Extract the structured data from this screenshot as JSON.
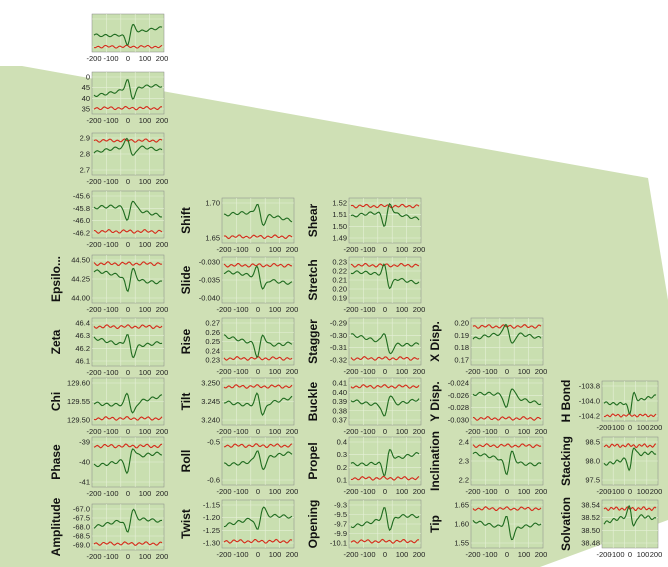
{
  "colors": {
    "green_overlay": "#cfe0b5",
    "panel_bg": "#c9dfb0",
    "panel_grid": "#e6f0d8",
    "simulation_line": "#1f6b1f",
    "reference_line": "#d62a1a"
  },
  "x_ticks": [
    "-200",
    "-100",
    "0",
    "100",
    "200"
  ],
  "chart_data": [
    {
      "id": "c0r0",
      "type": "line",
      "ylabel": "",
      "yticks": [
        "",
        ""
      ],
      "ylim": [
        0,
        1
      ]
    },
    {
      "id": "c0r1",
      "type": "line",
      "ylabel": "",
      "yticks": [
        "0",
        "45",
        "40",
        "35"
      ],
      "ylim": [
        0,
        1
      ]
    },
    {
      "id": "c0r2",
      "type": "line",
      "ylabel": "",
      "yticks": [
        "2.9",
        "2.8",
        "2.7"
      ],
      "ylim": [
        2.65,
        2.95
      ]
    },
    {
      "id": "c0r3",
      "type": "line",
      "ylabel": "",
      "yticks": [
        "-45.6",
        "-45.8",
        "-46.0",
        "-46.2"
      ],
      "ylim": [
        -46.3,
        -45.5
      ]
    },
    {
      "id": "c0r4",
      "type": "line",
      "ylabel": "Epsilo...",
      "yticks": [
        "44.50",
        "44.25",
        "44.00"
      ],
      "ylim": [
        43.9,
        44.6
      ]
    },
    {
      "id": "c0r5",
      "type": "line",
      "ylabel": "Zeta",
      "yticks": [
        "46.4",
        "46.3",
        "46.2",
        "46.1"
      ],
      "ylim": [
        46.05,
        46.45
      ]
    },
    {
      "id": "c0r6",
      "type": "line",
      "ylabel": "Chi",
      "yticks": [
        "129.60",
        "129.55",
        "129.50"
      ],
      "ylim": [
        129.47,
        129.63
      ]
    },
    {
      "id": "c0r7",
      "type": "line",
      "ylabel": "Phase",
      "yticks": [
        "-39",
        "-40",
        "-41"
      ],
      "ylim": [
        -41.8,
        -38.8
      ]
    },
    {
      "id": "c0r8",
      "type": "line",
      "ylabel": "Amplitude",
      "yticks": [
        "-67.0",
        "-67.5",
        "-68.0",
        "-68.5",
        "-69.0"
      ],
      "ylim": [
        -69.3,
        -66.8
      ]
    },
    {
      "id": "c1r0",
      "type": "line",
      "ylabel": "Shift",
      "yticks": [
        "1.70",
        "1.65"
      ],
      "ylim": [
        1.62,
        1.73
      ]
    },
    {
      "id": "c1r1",
      "type": "line",
      "ylabel": "Slide",
      "yticks": [
        "-0.030",
        "-0.035",
        "-0.040"
      ],
      "ylim": [
        -0.044,
        -0.026
      ]
    },
    {
      "id": "c1r2",
      "type": "line",
      "ylabel": "Rise",
      "yticks": [
        "0.27",
        "0.26",
        "0.25",
        "0.24",
        "0.23"
      ],
      "ylim": [
        0.225,
        0.275
      ]
    },
    {
      "id": "c1r3",
      "type": "line",
      "ylabel": "Tilt",
      "yticks": [
        "3.250",
        "3.245",
        "3.240"
      ],
      "ylim": [
        3.237,
        3.256
      ]
    },
    {
      "id": "c1r4",
      "type": "line",
      "ylabel": "Roll",
      "yticks": [
        "-0.5",
        "-0.6"
      ],
      "ylim": [
        -0.68,
        -0.42
      ]
    },
    {
      "id": "c1r5",
      "type": "line",
      "ylabel": "Twist",
      "yticks": [
        "-1.15",
        "-1.20",
        "-1.25",
        "-1.30"
      ],
      "ylim": [
        -1.33,
        -1.13
      ]
    },
    {
      "id": "c2r0",
      "type": "line",
      "ylabel": "Shear",
      "yticks": [
        "1.52",
        "1.51",
        "1.50",
        "1.49"
      ],
      "ylim": [
        1.485,
        1.525
      ]
    },
    {
      "id": "c2r1",
      "type": "line",
      "ylabel": "Stretch",
      "yticks": [
        "0.23",
        "0.22",
        "0.21",
        "0.20",
        "0.19"
      ],
      "ylim": [
        0.185,
        0.235
      ]
    },
    {
      "id": "c2r2",
      "type": "line",
      "ylabel": "Stagger",
      "yticks": [
        "-0.29",
        "-0.30",
        "-0.31",
        "-0.32"
      ],
      "ylim": [
        -0.325,
        -0.285
      ]
    },
    {
      "id": "c2r3",
      "type": "line",
      "ylabel": "Buckle",
      "yticks": [
        "0.41",
        "0.40",
        "0.39",
        "0.38",
        "0.37"
      ],
      "ylim": [
        0.365,
        0.415
      ]
    },
    {
      "id": "c2r4",
      "type": "line",
      "ylabel": "Propel",
      "yticks": [
        "0.4",
        "0.3",
        "0.2",
        "0.1"
      ],
      "ylim": [
        0.05,
        0.45
      ]
    },
    {
      "id": "c2r5",
      "type": "line",
      "ylabel": "Opening",
      "yticks": [
        "-9.3",
        "-9.5",
        "-9.7",
        "-9.9",
        "-10.1"
      ],
      "ylim": [
        -10.2,
        -9.2
      ]
    },
    {
      "id": "c3r2",
      "type": "line",
      "ylabel": "X Disp.",
      "yticks": [
        "0.20",
        "0.19",
        "0.18",
        "0.17"
      ],
      "ylim": [
        0.165,
        0.21
      ]
    },
    {
      "id": "c3r3",
      "type": "line",
      "ylabel": "Y Disp.",
      "yticks": [
        "-0.024",
        "-0.026",
        "-0.028",
        "-0.030"
      ],
      "ylim": [
        -0.031,
        -0.023
      ]
    },
    {
      "id": "c3r4",
      "type": "line",
      "ylabel": "Inclination",
      "yticks": [
        "2.4",
        "2.3",
        "2.2"
      ],
      "ylim": [
        2.1,
        2.48
      ]
    },
    {
      "id": "c3r5",
      "type": "line",
      "ylabel": "Tip",
      "yticks": [
        "1.65",
        "1.60",
        "1.55"
      ],
      "ylim": [
        1.54,
        1.68
      ]
    },
    {
      "id": "c4r3",
      "type": "line",
      "ylabel": "H Bond",
      "yticks": [
        "-103.8",
        "-104.0",
        "-104.2"
      ],
      "ylim": [
        -104.3,
        -103.7
      ]
    },
    {
      "id": "c4r4",
      "type": "line",
      "ylabel": "Stacking",
      "yticks": [
        "98.5",
        "98.0",
        "97.5"
      ],
      "ylim": [
        97.3,
        98.7
      ]
    },
    {
      "id": "c4r5",
      "type": "line",
      "ylabel": "Solvation",
      "yticks": [
        "38.54",
        "38.52",
        "38.50",
        "38.48"
      ],
      "ylim": [
        38.47,
        38.55
      ]
    }
  ]
}
